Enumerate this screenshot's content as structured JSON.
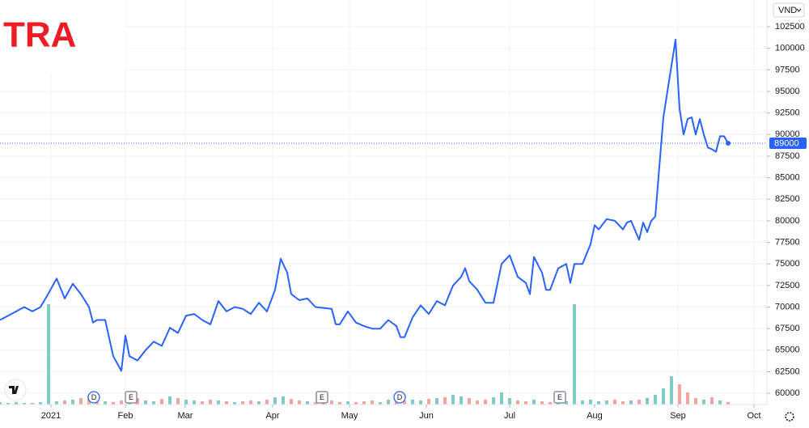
{
  "chart_data": {
    "type": "line",
    "title": "TRA",
    "currency": "VND",
    "last_value": 89000,
    "color": "#2962ff",
    "up_color": "#80cbc4",
    "down_color": "#f7a1a1",
    "x": [
      0,
      1,
      2,
      3,
      4,
      5,
      6,
      7,
      8,
      9,
      10,
      11,
      11.5,
      12,
      13,
      14,
      15,
      15.5,
      16,
      17,
      18,
      19,
      20,
      21,
      22,
      23,
      24,
      25,
      26,
      27,
      28,
      29,
      30,
      31,
      32,
      33,
      34,
      34.7,
      35.5,
      36,
      37,
      38,
      39,
      40,
      41,
      41.5,
      42,
      43,
      44,
      45,
      46,
      47,
      48,
      49,
      49.5,
      50,
      51,
      52,
      53,
      54,
      55,
      56,
      57,
      57.5,
      58,
      59,
      60,
      61,
      62,
      63,
      64,
      65,
      65.5,
      66,
      67,
      67.5,
      68,
      69,
      70,
      70.5,
      71,
      72,
      73,
      73.5,
      74,
      75,
      76,
      77,
      77.5,
      78,
      79,
      79.5,
      80,
      80.5,
      81,
      82,
      83,
      83.5,
      84,
      84.5,
      85,
      85.5,
      86,
      86.5,
      87,
      87.5,
      88,
      88.5,
      89,
      89.5,
      90
    ],
    "values": [
      68500,
      69000,
      69500,
      70000,
      69500,
      70000,
      71600,
      73300,
      71000,
      72700,
      71500,
      70000,
      68200,
      68500,
      68500,
      64300,
      62600,
      66700,
      64300,
      63800,
      65000,
      66000,
      65500,
      67600,
      67000,
      69000,
      69200,
      68500,
      68000,
      70700,
      69500,
      70000,
      69800,
      69200,
      70500,
      69500,
      72000,
      75600,
      74000,
      71500,
      70800,
      71000,
      70000,
      69900,
      69800,
      68000,
      68000,
      69500,
      68200,
      67800,
      67500,
      67500,
      68500,
      67800,
      66500,
      66500,
      68800,
      70200,
      69200,
      70700,
      70200,
      72500,
      73500,
      74500,
      73000,
      72000,
      70500,
      70500,
      75000,
      76000,
      73500,
      72800,
      71500,
      75800,
      74000,
      72000,
      72000,
      74500,
      75000,
      72800,
      75000,
      75000,
      77300,
      79500,
      79000,
      80200,
      80000,
      79000,
      79800,
      80000,
      77800,
      79800,
      78700,
      80000,
      80500,
      92000,
      98000,
      101000,
      93000,
      90000,
      91800,
      92000,
      90000,
      91800,
      90000,
      88500,
      88300,
      88000,
      89800,
      89800,
      89000
    ],
    "volume": {
      "x": [
        0,
        1,
        2,
        3,
        4,
        5,
        6,
        7,
        8,
        9,
        10,
        11,
        12,
        13,
        14,
        15,
        16,
        17,
        18,
        19,
        20,
        21,
        22,
        23,
        24,
        25,
        26,
        27,
        28,
        29,
        30,
        31,
        32,
        33,
        34,
        35,
        36,
        37,
        38,
        39,
        40,
        41,
        42,
        43,
        44,
        45,
        46,
        47,
        48,
        49,
        50,
        51,
        52,
        53,
        54,
        55,
        56,
        57,
        58,
        59,
        60,
        61,
        62,
        63,
        64,
        65,
        66,
        67,
        68,
        69,
        70,
        71,
        72,
        73,
        74,
        75,
        76,
        77,
        78,
        79,
        80,
        81,
        82,
        83,
        84,
        85,
        86,
        87,
        88,
        89,
        90
      ],
      "values": [
        3,
        2,
        3,
        2,
        2,
        3,
        124,
        4,
        5,
        6,
        8,
        10,
        6,
        4,
        3,
        5,
        6,
        8,
        5,
        4,
        7,
        10,
        8,
        6,
        5,
        4,
        6,
        5,
        4,
        3,
        4,
        5,
        4,
        6,
        9,
        10,
        7,
        5,
        4,
        3,
        4,
        5,
        3,
        4,
        3,
        4,
        5,
        3,
        6,
        4,
        5,
        6,
        5,
        7,
        8,
        9,
        12,
        10,
        8,
        5,
        6,
        9,
        15,
        8,
        5,
        4,
        6,
        4,
        3,
        5,
        4,
        124,
        5,
        6,
        4,
        5,
        6,
        4,
        5,
        6,
        8,
        12,
        20,
        35,
        25,
        15,
        8,
        6,
        9,
        5,
        3
      ]
    },
    "y2lim": [
      0,
      130
    ],
    "events": [
      {
        "x": 11.6,
        "label": "D"
      },
      {
        "x": 16.2,
        "label": "E"
      },
      {
        "x": 39.8,
        "label": "E"
      },
      {
        "x": 49.4,
        "label": "D"
      },
      {
        "x": 69.2,
        "label": "E"
      }
    ],
    "xlim": [
      0,
      94.8
    ],
    "xticks": [
      {
        "value": 6.3,
        "label": "2021"
      },
      {
        "value": 15.5,
        "label": "Feb"
      },
      {
        "value": 22.9,
        "label": "Mar"
      },
      {
        "value": 33.7,
        "label": "Apr"
      },
      {
        "value": 43.2,
        "label": "May"
      },
      {
        "value": 52.7,
        "label": "Jun"
      },
      {
        "value": 63,
        "label": "Jul"
      },
      {
        "value": 73.5,
        "label": "Aug"
      },
      {
        "value": 83.8,
        "label": "Sep"
      },
      {
        "value": 93.2,
        "label": "Oct"
      }
    ],
    "ylim": [
      58700,
      105600
    ],
    "yticks": [
      60000,
      62500,
      65000,
      67500,
      70000,
      72500,
      75000,
      77500,
      80000,
      82500,
      85000,
      87500,
      90000,
      92500,
      95000,
      97500,
      100000,
      102500
    ],
    "grid": true
  }
}
